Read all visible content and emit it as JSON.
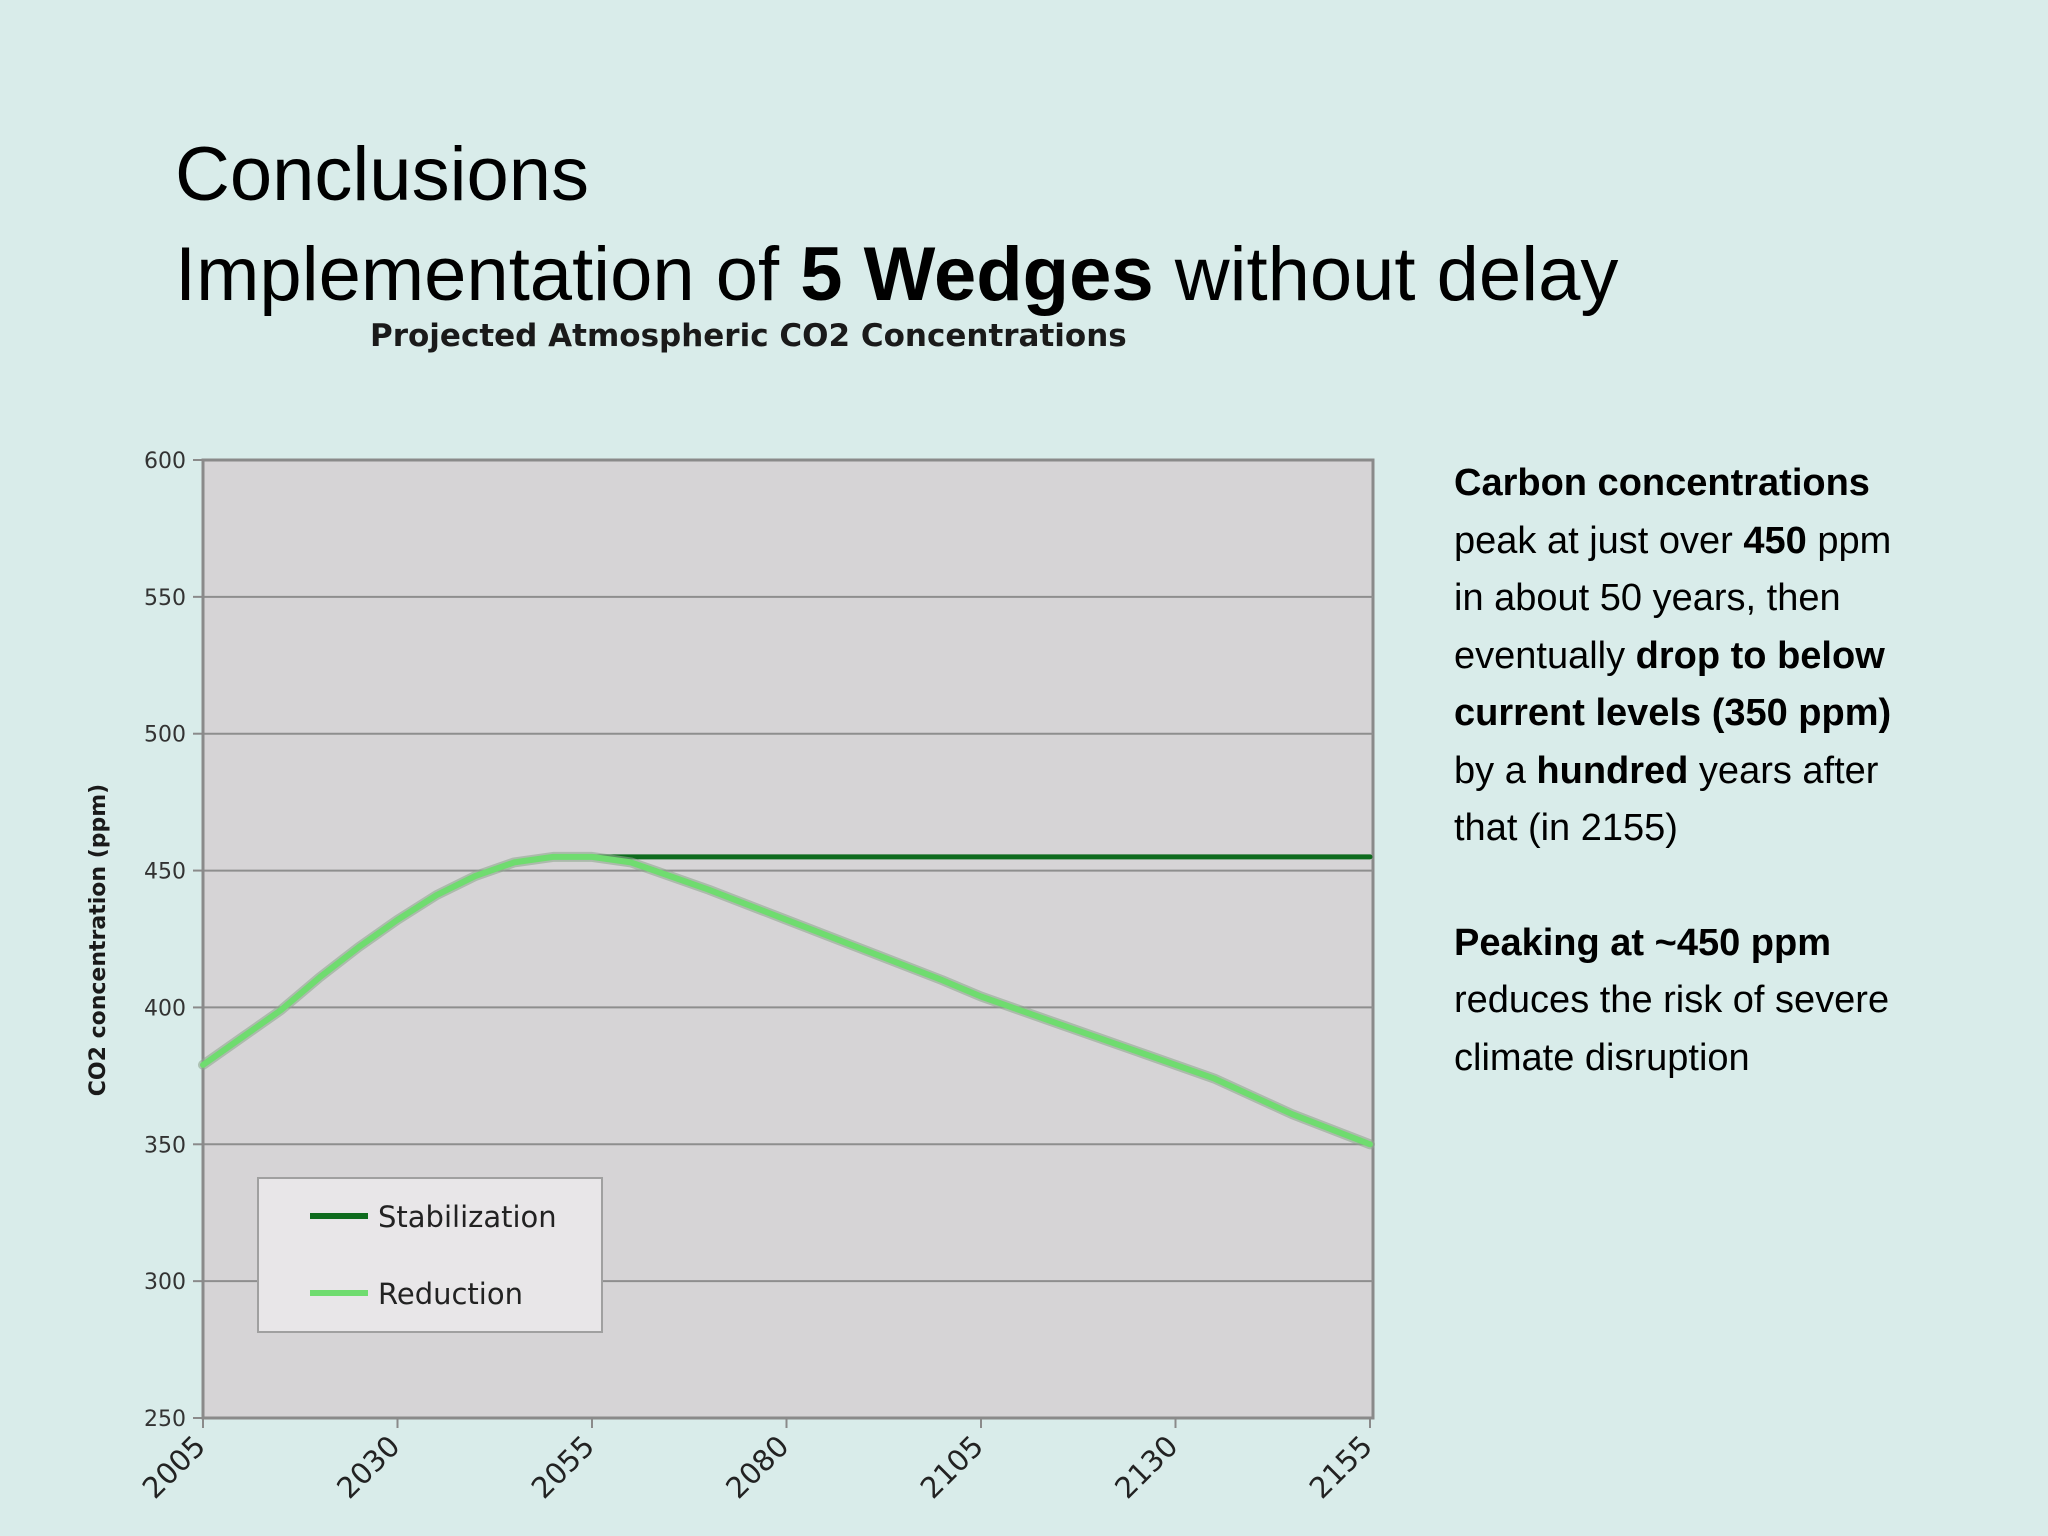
{
  "slide": {
    "title_line1": "Conclusions",
    "title_line2_pre": "Implementation of ",
    "title_line2_bold": "5 Wedges",
    "title_line2_post": " without delay"
  },
  "chart_data": {
    "type": "line",
    "title": "Projected Atmospheric CO2 Concentrations",
    "xlabel": "",
    "ylabel": "CO2 concentration (ppm)",
    "xlim": [
      2005,
      2155
    ],
    "ylim": [
      250,
      600
    ],
    "x_ticks": [
      "2005",
      "2030",
      "2055",
      "2080",
      "2105",
      "2130",
      "2155"
    ],
    "y_ticks": [
      "600",
      "550",
      "500",
      "450",
      "400",
      "350",
      "300",
      "250"
    ],
    "grid": true,
    "legend_position": "bottom-left",
    "series": [
      {
        "name": "Stabilization",
        "color": "#0e6b1e",
        "x": [
          2005,
          2010,
          2015,
          2020,
          2025,
          2030,
          2035,
          2040,
          2045,
          2050,
          2055,
          2060,
          2080,
          2105,
          2130,
          2155
        ],
        "y": [
          379,
          389,
          399,
          411,
          422,
          432,
          441,
          448,
          453,
          455,
          455,
          455,
          455,
          455,
          455,
          455
        ]
      },
      {
        "name": "Reduction",
        "color": "#6fdc6f",
        "x": [
          2005,
          2010,
          2015,
          2020,
          2025,
          2030,
          2035,
          2040,
          2045,
          2050,
          2055,
          2060,
          2065,
          2070,
          2080,
          2090,
          2100,
          2105,
          2115,
          2125,
          2135,
          2145,
          2155
        ],
        "y": [
          379,
          389,
          399,
          411,
          422,
          432,
          441,
          448,
          453,
          455,
          455,
          453,
          448,
          443,
          432,
          421,
          410,
          404,
          394,
          384,
          374,
          361,
          350
        ]
      }
    ]
  },
  "side": {
    "p1_b1": "Carbon concentrations",
    "p1_t1": " peak at just over ",
    "p1_b2": "450",
    "p1_t2": " ppm in about 50 years, then eventually ",
    "p1_b3": "drop to below current levels (350 ppm)",
    "p1_t3": " by a ",
    "p1_b4": "hundred",
    "p1_t4": " years after that (in 2155)",
    "p2_b1": "Peaking at ~450 ppm",
    "p2_t1": " reduces the risk of severe climate disruption"
  }
}
